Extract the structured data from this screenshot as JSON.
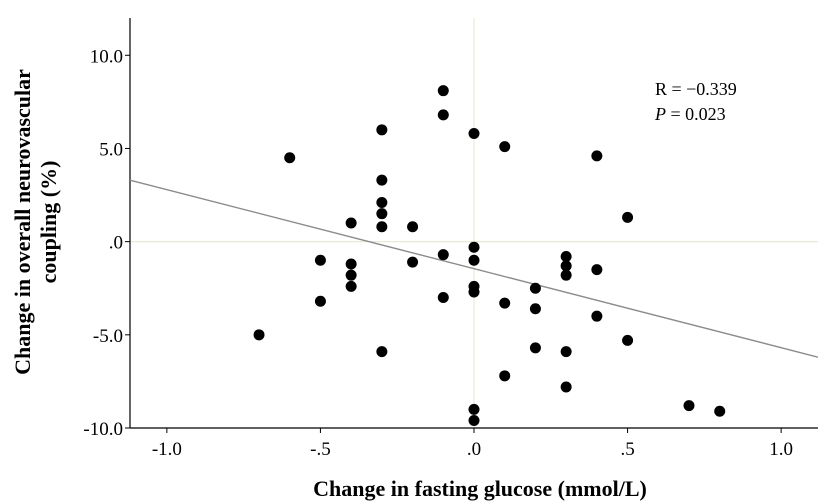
{
  "chart_data": {
    "type": "scatter",
    "xlabel": "Change in fasting glucose (mmol/L)",
    "ylabel": [
      "Change in overall neurovascular",
      "coupling (%)"
    ],
    "xlim": [
      -1.12,
      1.12
    ],
    "ylim": [
      -10.0,
      12.0
    ],
    "x_ticks": [
      -1.0,
      -0.5,
      0.0,
      0.5,
      1.0
    ],
    "x_tick_labels": [
      "-1.0",
      "-.5",
      ".0",
      ".5",
      "1.0"
    ],
    "y_ticks": [
      -10.0,
      -5.0,
      0.0,
      5.0,
      10.0
    ],
    "y_tick_labels": [
      "-10.0",
      "-5.0",
      ".0",
      "5.0",
      "10.0"
    ],
    "reference_lines": {
      "x": 0.0,
      "y": 0.0
    },
    "fit_line": {
      "x": [
        -1.12,
        1.12
      ],
      "y": [
        3.3,
        -6.2
      ]
    },
    "annotations": {
      "r_text": "R = −0.339",
      "p_label": "P",
      "p_value": " = 0.023"
    },
    "colors": {
      "points": "#000000",
      "fit": "#8c8c8c",
      "reference": "#e8ead6"
    },
    "points": [
      {
        "x": -0.7,
        "y": -5.0
      },
      {
        "x": -0.6,
        "y": 4.5
      },
      {
        "x": -0.5,
        "y": -1.0
      },
      {
        "x": -0.5,
        "y": -3.2
      },
      {
        "x": -0.4,
        "y": 1.0
      },
      {
        "x": -0.4,
        "y": -1.2
      },
      {
        "x": -0.4,
        "y": -1.8
      },
      {
        "x": -0.4,
        "y": -2.4
      },
      {
        "x": -0.3,
        "y": 6.0
      },
      {
        "x": -0.3,
        "y": 3.3
      },
      {
        "x": -0.3,
        "y": 2.1
      },
      {
        "x": -0.3,
        "y": 1.5
      },
      {
        "x": -0.3,
        "y": 0.8
      },
      {
        "x": -0.3,
        "y": -5.9
      },
      {
        "x": -0.2,
        "y": 0.8
      },
      {
        "x": -0.2,
        "y": -1.1
      },
      {
        "x": -0.1,
        "y": 8.1
      },
      {
        "x": -0.1,
        "y": 6.8
      },
      {
        "x": -0.1,
        "y": -0.7
      },
      {
        "x": -0.1,
        "y": -3.0
      },
      {
        "x": 0.0,
        "y": 5.8
      },
      {
        "x": 0.0,
        "y": -0.3
      },
      {
        "x": 0.0,
        "y": -1.0
      },
      {
        "x": 0.0,
        "y": -2.4
      },
      {
        "x": 0.0,
        "y": -2.7
      },
      {
        "x": 0.0,
        "y": -9.0
      },
      {
        "x": 0.0,
        "y": -9.6
      },
      {
        "x": 0.1,
        "y": 5.1
      },
      {
        "x": 0.1,
        "y": -3.3
      },
      {
        "x": 0.1,
        "y": -7.2
      },
      {
        "x": 0.2,
        "y": -2.5
      },
      {
        "x": 0.2,
        "y": -3.6
      },
      {
        "x": 0.2,
        "y": -5.7
      },
      {
        "x": 0.3,
        "y": -0.8
      },
      {
        "x": 0.3,
        "y": -1.3
      },
      {
        "x": 0.3,
        "y": -1.8
      },
      {
        "x": 0.3,
        "y": -5.9
      },
      {
        "x": 0.3,
        "y": -7.8
      },
      {
        "x": 0.4,
        "y": 4.6
      },
      {
        "x": 0.4,
        "y": -1.5
      },
      {
        "x": 0.4,
        "y": -4.0
      },
      {
        "x": 0.5,
        "y": 1.3
      },
      {
        "x": 0.5,
        "y": -5.3
      },
      {
        "x": 0.7,
        "y": -8.8
      },
      {
        "x": 0.8,
        "y": -9.1
      }
    ]
  }
}
